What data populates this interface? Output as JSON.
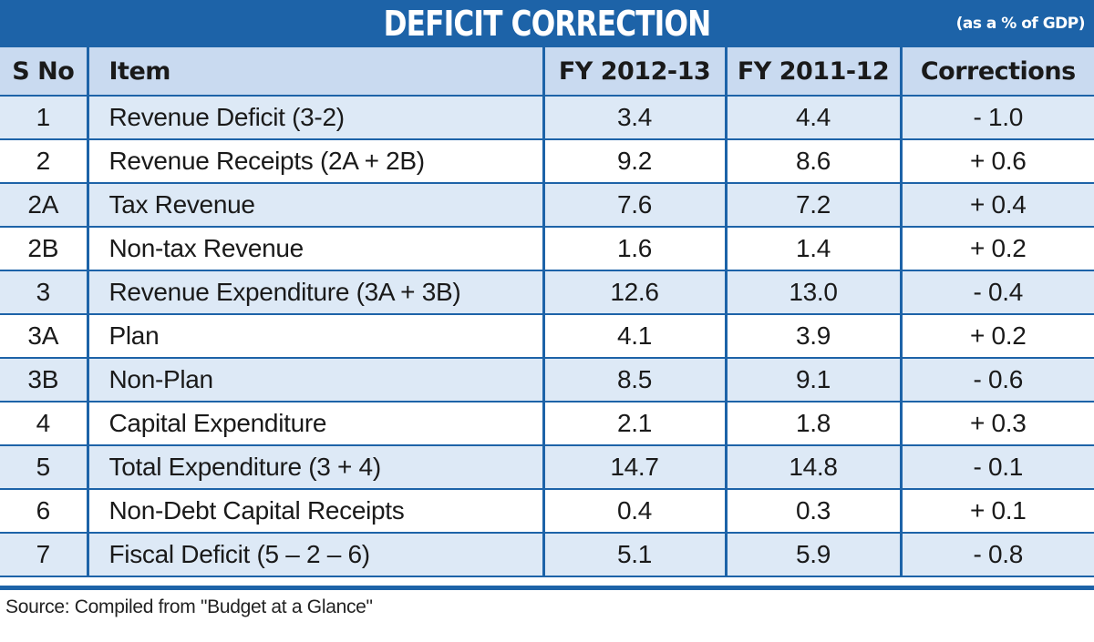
{
  "colors": {
    "header_blue": "#1d63a8",
    "header_row": "#c9daf0",
    "alt_row": "#dde9f6"
  },
  "chart_data": {
    "type": "table",
    "title": "DEFICIT CORRECTION",
    "unit_note": "(as a % of GDP)",
    "columns": [
      "S No",
      "Item",
      "FY 2012-13",
      "FY 2011-12",
      "Corrections"
    ],
    "rows": [
      [
        "1",
        "Revenue Deficit (3-2)",
        "3.4",
        "4.4",
        "- 1.0"
      ],
      [
        "2",
        "Revenue Receipts (2A + 2B)",
        "9.2",
        "8.6",
        "+ 0.6"
      ],
      [
        "2A",
        "Tax Revenue",
        "7.6",
        "7.2",
        "+ 0.4"
      ],
      [
        "2B",
        "Non-tax Revenue",
        "1.6",
        "1.4",
        "+ 0.2"
      ],
      [
        "3",
        "Revenue Expenditure (3A + 3B)",
        "12.6",
        "13.0",
        "- 0.4"
      ],
      [
        "3A",
        "Plan",
        "4.1",
        "3.9",
        "+ 0.2"
      ],
      [
        "3B",
        "Non-Plan",
        "8.5",
        "9.1",
        "- 0.6"
      ],
      [
        "4",
        "Capital Expenditure",
        "2.1",
        "1.8",
        "+ 0.3"
      ],
      [
        "5",
        "Total Expenditure (3 + 4)",
        "14.7",
        "14.8",
        "- 0.1"
      ],
      [
        "6",
        "Non-Debt Capital Receipts",
        "0.4",
        "0.3",
        "+ 0.1"
      ],
      [
        "7",
        "Fiscal Deficit (5 – 2 – 6)",
        "5.1",
        "5.9",
        "- 0.8"
      ]
    ],
    "source": "Source: Compiled from \"Budget at a Glance\""
  }
}
